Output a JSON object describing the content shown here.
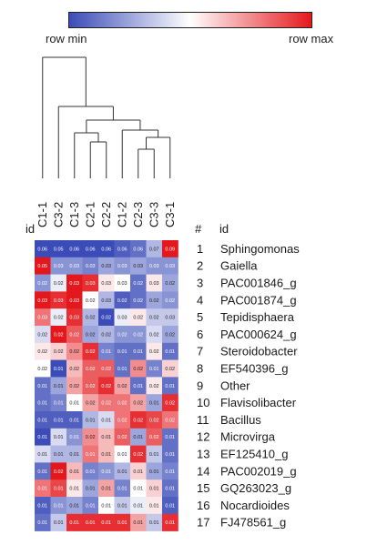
{
  "scale": {
    "min_label": "row min",
    "max_label": "row max",
    "colors": [
      "#3b4cb8",
      "#ffffff",
      "#e4181c"
    ]
  },
  "header": {
    "id_left": "id",
    "hash": "#",
    "id_right": "id"
  },
  "chart_data": {
    "type": "heatmap",
    "columns": [
      "C1-1",
      "C3-2",
      "C1-3",
      "C2-1",
      "C2-2",
      "C1-2",
      "C2-3",
      "C3-3",
      "C3-1"
    ],
    "rows": [
      {
        "num": "1",
        "name": "Sphingomonas"
      },
      {
        "num": "2",
        "name": "Gaiella"
      },
      {
        "num": "3",
        "name": "PAC001846_g"
      },
      {
        "num": "4",
        "name": "PAC001874_g"
      },
      {
        "num": "5",
        "name": "Tepidisphaera"
      },
      {
        "num": "6",
        "name": "PAC000624_g"
      },
      {
        "num": "7",
        "name": "Steroidobacter"
      },
      {
        "num": "8",
        "name": "EF540396_g"
      },
      {
        "num": "9",
        "name": "Other"
      },
      {
        "num": "10",
        "name": "Flavisolibacter"
      },
      {
        "num": "11",
        "name": "Bacillus"
      },
      {
        "num": "12",
        "name": "Microvirga"
      },
      {
        "num": "13",
        "name": "EF125410_g"
      },
      {
        "num": "14",
        "name": "PAC002019_g"
      },
      {
        "num": "15",
        "name": "GQ263023_g"
      },
      {
        "num": "16",
        "name": "Nocardioides"
      },
      {
        "num": "17",
        "name": "FJ478561_g"
      }
    ],
    "cell_labels": [
      [
        "0.06",
        "0.05",
        "0.06",
        "0.06",
        "0.06",
        "0.06",
        "0.06",
        "0.07",
        "0.09"
      ],
      [
        "0.05",
        "0.03",
        "0.03",
        "0.03",
        "0.03",
        "0.03",
        "0.03",
        "0.03",
        "0.03"
      ],
      [
        "0.02",
        "0.02",
        "0.03",
        "0.03",
        "0.03",
        "0.03",
        "0.02",
        "0.03",
        "0.02"
      ],
      [
        "0.03",
        "0.03",
        "0.03",
        "0.02",
        "0.03",
        "0.02",
        "0.02",
        "0.02",
        "0.02"
      ],
      [
        "0.03",
        "0.02",
        "0.03",
        "0.02",
        "0.02",
        "0.03",
        "0.02",
        "0.02",
        "0.03"
      ],
      [
        "0.02",
        "0.02",
        "0.02",
        "0.02",
        "0.02",
        "0.02",
        "0.02",
        "0.02",
        "0.02"
      ],
      [
        "0.02",
        "0.02",
        "0.02",
        "0.02",
        "0.01",
        "0.01",
        "0.01",
        "0.02",
        "0.01"
      ],
      [
        "0.02",
        "0.01",
        "0.02",
        "0.02",
        "0.02",
        "0.01",
        "0.02",
        "0.01",
        "0.02"
      ],
      [
        "0.01",
        "0.01",
        "0.02",
        "0.02",
        "0.02",
        "0.02",
        "0.01",
        "0.02",
        "0.01"
      ],
      [
        "0.01",
        "0.01",
        "0.01",
        "0.02",
        "0.02",
        "0.02",
        "0.02",
        "0.01",
        "0.02"
      ],
      [
        "0.01",
        "0.01",
        "0.01",
        "0.01",
        "0.01",
        "0.02",
        "0.02",
        "0.02",
        "0.02"
      ],
      [
        "0.01",
        "0.01",
        "0.01",
        "0.02",
        "0.01",
        "0.02",
        "0.01",
        "0.02",
        "0.01"
      ],
      [
        "0.01",
        "0.01",
        "0.01",
        "0.01",
        "0.01",
        "0.01",
        "0.02",
        "0.01",
        "0.01"
      ],
      [
        "0.01",
        "0.02",
        "0.01",
        "0.01",
        "0.01",
        "0.01",
        "0.01",
        "0.01",
        "0.01"
      ],
      [
        "0.01",
        "0.01",
        "0.01",
        "0.01",
        "0.01",
        "0.01",
        "0.01",
        "0.01",
        "0.01"
      ],
      [
        "0.01",
        "0.01",
        "0.01",
        "0.01",
        "0.01",
        "0.01",
        "0.01",
        "0.01",
        "0.01"
      ],
      [
        "0.01",
        "0.01",
        "0.01",
        "0.01",
        "0.01",
        "0.01",
        "0.01",
        "0.01",
        "0.01"
      ]
    ],
    "row_scaled": [
      [
        -1.0,
        -1.0,
        -1.0,
        -1.0,
        -1.0,
        -0.9,
        -0.8,
        -0.4,
        1.0
      ],
      [
        1.0,
        -0.6,
        -0.6,
        -0.7,
        -0.5,
        -0.6,
        -0.5,
        -0.6,
        -0.6
      ],
      [
        -0.6,
        -0.1,
        1.0,
        0.9,
        0.1,
        0.0,
        -0.8,
        0.1,
        -0.5
      ],
      [
        1.0,
        0.9,
        1.0,
        0.0,
        -0.4,
        -0.9,
        -0.8,
        -0.5,
        -0.6
      ],
      [
        0.6,
        -0.1,
        0.9,
        -0.4,
        -1.0,
        -0.1,
        0.1,
        -0.3,
        -0.3
      ],
      [
        -0.2,
        1.0,
        0.7,
        -0.5,
        -0.4,
        -0.6,
        -0.6,
        -0.2,
        -0.5
      ],
      [
        0.1,
        0.2,
        0.5,
        0.9,
        -0.7,
        -0.8,
        -0.8,
        0.1,
        -0.8
      ],
      [
        0.0,
        -1.0,
        0.3,
        0.7,
        0.7,
        -0.8,
        0.5,
        -0.7,
        0.2
      ],
      [
        -0.8,
        -0.5,
        0.4,
        0.7,
        0.9,
        0.4,
        -0.8,
        0.1,
        -0.8
      ],
      [
        -0.8,
        -0.7,
        0.0,
        0.4,
        0.6,
        0.6,
        0.4,
        -0.5,
        0.9
      ],
      [
        -0.9,
        -0.9,
        -0.9,
        -0.4,
        -0.2,
        0.6,
        0.9,
        0.8,
        0.6
      ],
      [
        -1.0,
        -0.2,
        -0.6,
        0.5,
        0.3,
        0.7,
        -0.5,
        0.7,
        -0.8
      ],
      [
        -0.2,
        -0.4,
        -0.4,
        0.6,
        0.3,
        0.0,
        0.9,
        -0.3,
        -0.8
      ],
      [
        -0.8,
        1.0,
        0.3,
        -0.7,
        -0.6,
        -0.4,
        0.2,
        -0.5,
        -0.7
      ],
      [
        0.6,
        0.8,
        0.1,
        -0.5,
        0.4,
        -0.7,
        0.0,
        0.2,
        -0.8
      ],
      [
        -0.9,
        -0.6,
        -0.5,
        -0.7,
        0.0,
        -0.3,
        -0.1,
        0.1,
        -0.9
      ],
      [
        -0.8,
        -0.3,
        0.9,
        0.9,
        0.9,
        0.9,
        0.4,
        -0.3,
        0.9
      ]
    ]
  }
}
